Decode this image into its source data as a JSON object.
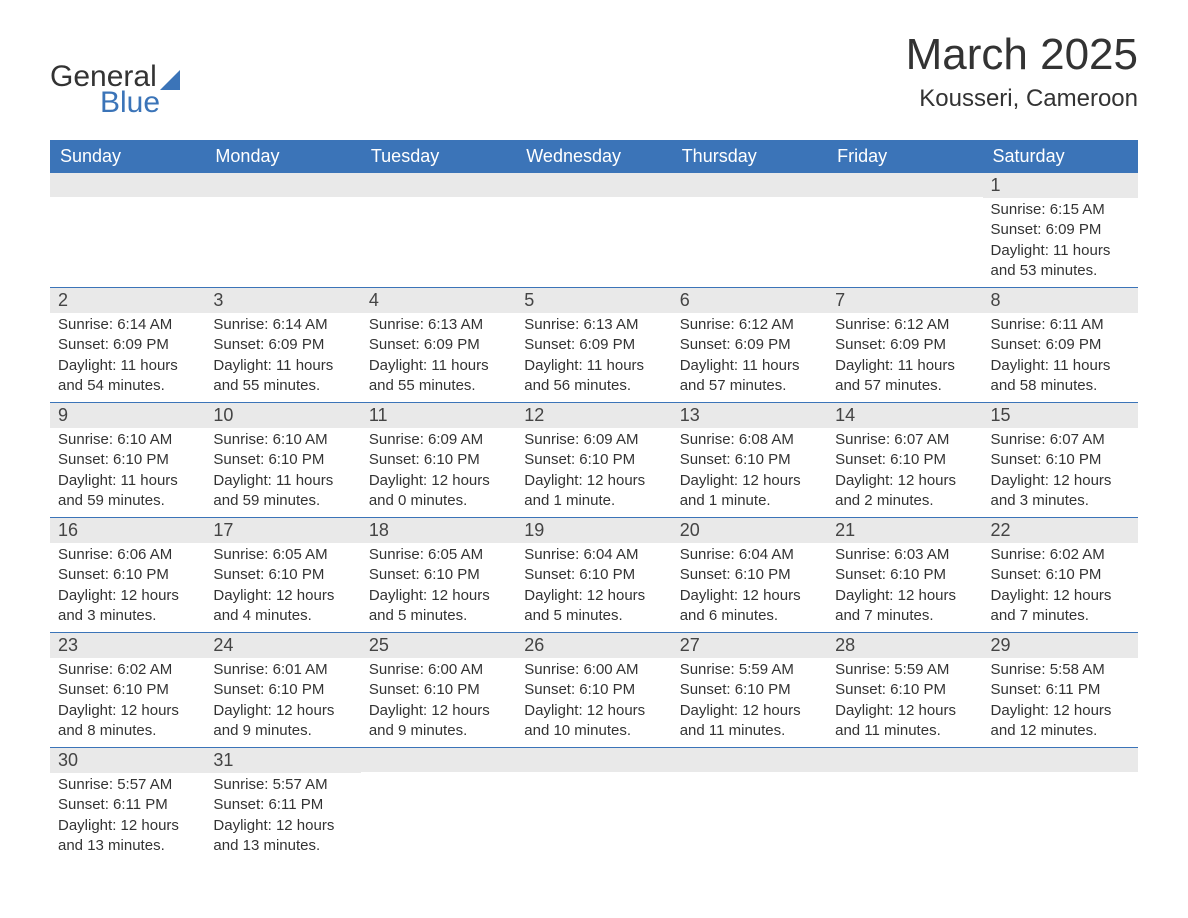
{
  "logo": {
    "general": "General",
    "blue": "Blue"
  },
  "header": {
    "month_year": "March 2025",
    "location": "Kousseri, Cameroon"
  },
  "weekdays": [
    "Sunday",
    "Monday",
    "Tuesday",
    "Wednesday",
    "Thursday",
    "Friday",
    "Saturday"
  ],
  "colors": {
    "header_bg": "#3b74b8",
    "header_text": "#ffffff",
    "day_number_bg": "#e9e9e9",
    "text": "#333333"
  },
  "weeks": [
    [
      {
        "day": "",
        "sunrise": "",
        "sunset": "",
        "daylight": ""
      },
      {
        "day": "",
        "sunrise": "",
        "sunset": "",
        "daylight": ""
      },
      {
        "day": "",
        "sunrise": "",
        "sunset": "",
        "daylight": ""
      },
      {
        "day": "",
        "sunrise": "",
        "sunset": "",
        "daylight": ""
      },
      {
        "day": "",
        "sunrise": "",
        "sunset": "",
        "daylight": ""
      },
      {
        "day": "",
        "sunrise": "",
        "sunset": "",
        "daylight": ""
      },
      {
        "day": "1",
        "sunrise": "Sunrise: 6:15 AM",
        "sunset": "Sunset: 6:09 PM",
        "daylight": "Daylight: 11 hours and 53 minutes."
      }
    ],
    [
      {
        "day": "2",
        "sunrise": "Sunrise: 6:14 AM",
        "sunset": "Sunset: 6:09 PM",
        "daylight": "Daylight: 11 hours and 54 minutes."
      },
      {
        "day": "3",
        "sunrise": "Sunrise: 6:14 AM",
        "sunset": "Sunset: 6:09 PM",
        "daylight": "Daylight: 11 hours and 55 minutes."
      },
      {
        "day": "4",
        "sunrise": "Sunrise: 6:13 AM",
        "sunset": "Sunset: 6:09 PM",
        "daylight": "Daylight: 11 hours and 55 minutes."
      },
      {
        "day": "5",
        "sunrise": "Sunrise: 6:13 AM",
        "sunset": "Sunset: 6:09 PM",
        "daylight": "Daylight: 11 hours and 56 minutes."
      },
      {
        "day": "6",
        "sunrise": "Sunrise: 6:12 AM",
        "sunset": "Sunset: 6:09 PM",
        "daylight": "Daylight: 11 hours and 57 minutes."
      },
      {
        "day": "7",
        "sunrise": "Sunrise: 6:12 AM",
        "sunset": "Sunset: 6:09 PM",
        "daylight": "Daylight: 11 hours and 57 minutes."
      },
      {
        "day": "8",
        "sunrise": "Sunrise: 6:11 AM",
        "sunset": "Sunset: 6:09 PM",
        "daylight": "Daylight: 11 hours and 58 minutes."
      }
    ],
    [
      {
        "day": "9",
        "sunrise": "Sunrise: 6:10 AM",
        "sunset": "Sunset: 6:10 PM",
        "daylight": "Daylight: 11 hours and 59 minutes."
      },
      {
        "day": "10",
        "sunrise": "Sunrise: 6:10 AM",
        "sunset": "Sunset: 6:10 PM",
        "daylight": "Daylight: 11 hours and 59 minutes."
      },
      {
        "day": "11",
        "sunrise": "Sunrise: 6:09 AM",
        "sunset": "Sunset: 6:10 PM",
        "daylight": "Daylight: 12 hours and 0 minutes."
      },
      {
        "day": "12",
        "sunrise": "Sunrise: 6:09 AM",
        "sunset": "Sunset: 6:10 PM",
        "daylight": "Daylight: 12 hours and 1 minute."
      },
      {
        "day": "13",
        "sunrise": "Sunrise: 6:08 AM",
        "sunset": "Sunset: 6:10 PM",
        "daylight": "Daylight: 12 hours and 1 minute."
      },
      {
        "day": "14",
        "sunrise": "Sunrise: 6:07 AM",
        "sunset": "Sunset: 6:10 PM",
        "daylight": "Daylight: 12 hours and 2 minutes."
      },
      {
        "day": "15",
        "sunrise": "Sunrise: 6:07 AM",
        "sunset": "Sunset: 6:10 PM",
        "daylight": "Daylight: 12 hours and 3 minutes."
      }
    ],
    [
      {
        "day": "16",
        "sunrise": "Sunrise: 6:06 AM",
        "sunset": "Sunset: 6:10 PM",
        "daylight": "Daylight: 12 hours and 3 minutes."
      },
      {
        "day": "17",
        "sunrise": "Sunrise: 6:05 AM",
        "sunset": "Sunset: 6:10 PM",
        "daylight": "Daylight: 12 hours and 4 minutes."
      },
      {
        "day": "18",
        "sunrise": "Sunrise: 6:05 AM",
        "sunset": "Sunset: 6:10 PM",
        "daylight": "Daylight: 12 hours and 5 minutes."
      },
      {
        "day": "19",
        "sunrise": "Sunrise: 6:04 AM",
        "sunset": "Sunset: 6:10 PM",
        "daylight": "Daylight: 12 hours and 5 minutes."
      },
      {
        "day": "20",
        "sunrise": "Sunrise: 6:04 AM",
        "sunset": "Sunset: 6:10 PM",
        "daylight": "Daylight: 12 hours and 6 minutes."
      },
      {
        "day": "21",
        "sunrise": "Sunrise: 6:03 AM",
        "sunset": "Sunset: 6:10 PM",
        "daylight": "Daylight: 12 hours and 7 minutes."
      },
      {
        "day": "22",
        "sunrise": "Sunrise: 6:02 AM",
        "sunset": "Sunset: 6:10 PM",
        "daylight": "Daylight: 12 hours and 7 minutes."
      }
    ],
    [
      {
        "day": "23",
        "sunrise": "Sunrise: 6:02 AM",
        "sunset": "Sunset: 6:10 PM",
        "daylight": "Daylight: 12 hours and 8 minutes."
      },
      {
        "day": "24",
        "sunrise": "Sunrise: 6:01 AM",
        "sunset": "Sunset: 6:10 PM",
        "daylight": "Daylight: 12 hours and 9 minutes."
      },
      {
        "day": "25",
        "sunrise": "Sunrise: 6:00 AM",
        "sunset": "Sunset: 6:10 PM",
        "daylight": "Daylight: 12 hours and 9 minutes."
      },
      {
        "day": "26",
        "sunrise": "Sunrise: 6:00 AM",
        "sunset": "Sunset: 6:10 PM",
        "daylight": "Daylight: 12 hours and 10 minutes."
      },
      {
        "day": "27",
        "sunrise": "Sunrise: 5:59 AM",
        "sunset": "Sunset: 6:10 PM",
        "daylight": "Daylight: 12 hours and 11 minutes."
      },
      {
        "day": "28",
        "sunrise": "Sunrise: 5:59 AM",
        "sunset": "Sunset: 6:10 PM",
        "daylight": "Daylight: 12 hours and 11 minutes."
      },
      {
        "day": "29",
        "sunrise": "Sunrise: 5:58 AM",
        "sunset": "Sunset: 6:11 PM",
        "daylight": "Daylight: 12 hours and 12 minutes."
      }
    ],
    [
      {
        "day": "30",
        "sunrise": "Sunrise: 5:57 AM",
        "sunset": "Sunset: 6:11 PM",
        "daylight": "Daylight: 12 hours and 13 minutes."
      },
      {
        "day": "31",
        "sunrise": "Sunrise: 5:57 AM",
        "sunset": "Sunset: 6:11 PM",
        "daylight": "Daylight: 12 hours and 13 minutes."
      },
      {
        "day": "",
        "sunrise": "",
        "sunset": "",
        "daylight": ""
      },
      {
        "day": "",
        "sunrise": "",
        "sunset": "",
        "daylight": ""
      },
      {
        "day": "",
        "sunrise": "",
        "sunset": "",
        "daylight": ""
      },
      {
        "day": "",
        "sunrise": "",
        "sunset": "",
        "daylight": ""
      },
      {
        "day": "",
        "sunrise": "",
        "sunset": "",
        "daylight": ""
      }
    ]
  ]
}
